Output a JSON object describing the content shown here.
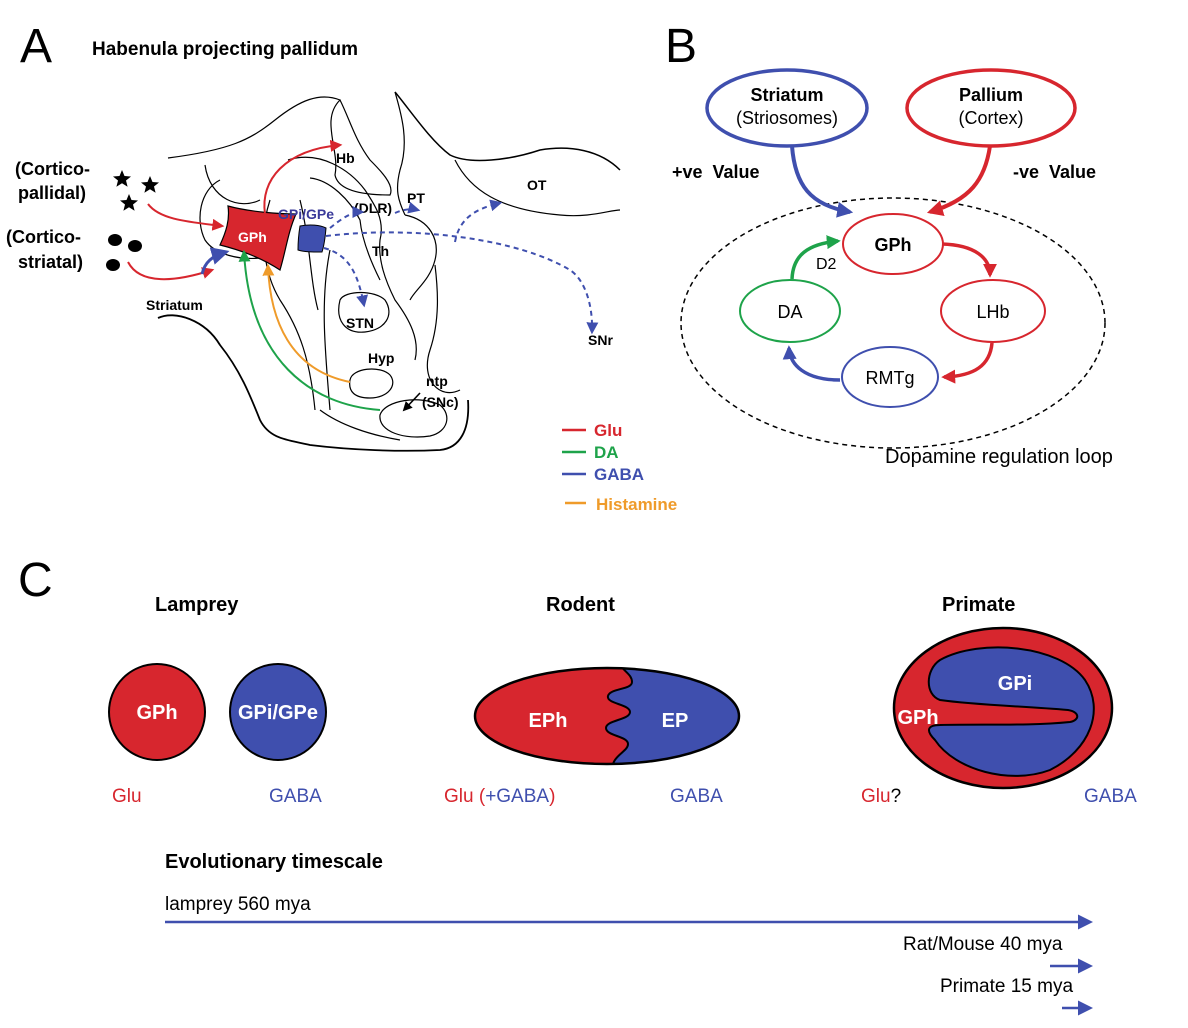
{
  "colors": {
    "glu": "#d7262e",
    "da": "#1ea34a",
    "gaba": "#3f4fae",
    "histamine": "#ef9b2a",
    "gpi_text": "#3a3a9a"
  },
  "panelA": {
    "letter": "A",
    "title": "Habenula projecting pallidum",
    "cortico_pallidal_1": "(Cortico-",
    "cortico_pallidal_2": "pallidal)",
    "cortico_striatal_1": "(Cortico-",
    "cortico_striatal_2": "striatal)",
    "striatum": "Striatum",
    "gph": "GPh",
    "gpi_gpe": "GPi/GPe",
    "hb": "Hb",
    "dlr": "(DLR)",
    "pt": "PT",
    "ot": "OT",
    "th": "Th",
    "stn": "STN",
    "snr": "SNr",
    "hyp": "Hyp",
    "ntp_1": "ntp",
    "ntp_2": "(SNc)",
    "legend": {
      "glu": "Glu",
      "da": "DA",
      "gaba": "GABA",
      "histamine": "Histamine"
    }
  },
  "panelB": {
    "letter": "B",
    "striatum_1": "Striatum",
    "striatum_2": "(Striosomes)",
    "pallium_1": "Pallium",
    "pallium_2": "(Cortex)",
    "pos_value": "+ve  Value",
    "neg_value": "-ve  Value",
    "gph": "GPh",
    "lhb": "LHb",
    "rmtg": "RMTg",
    "da": "DA",
    "d2": "D2",
    "caption": "Dopamine regulation loop"
  },
  "panelC": {
    "letter": "C",
    "lamprey": {
      "title": "Lamprey",
      "left_label": "GPh",
      "right_label": "GPi/GPe",
      "left_nt": "Glu",
      "right_nt": "GABA"
    },
    "rodent": {
      "title": "Rodent",
      "left_label": "EPh",
      "right_label": "EP",
      "left_nt_a": "Glu (",
      "left_nt_b": "+GABA",
      "left_nt_c": ")",
      "right_nt": "GABA"
    },
    "primate": {
      "title": "Primate",
      "outer_label": "GPh",
      "inner_label": "GPi",
      "left_nt_a": "Glu",
      "left_nt_b": "?",
      "right_nt": "GABA"
    },
    "timescale": {
      "title": "Evolutionary timescale",
      "lamprey": "lamprey 560 mya",
      "rodent": "Rat/Mouse 40 mya",
      "primate": "Primate 15 mya"
    }
  }
}
